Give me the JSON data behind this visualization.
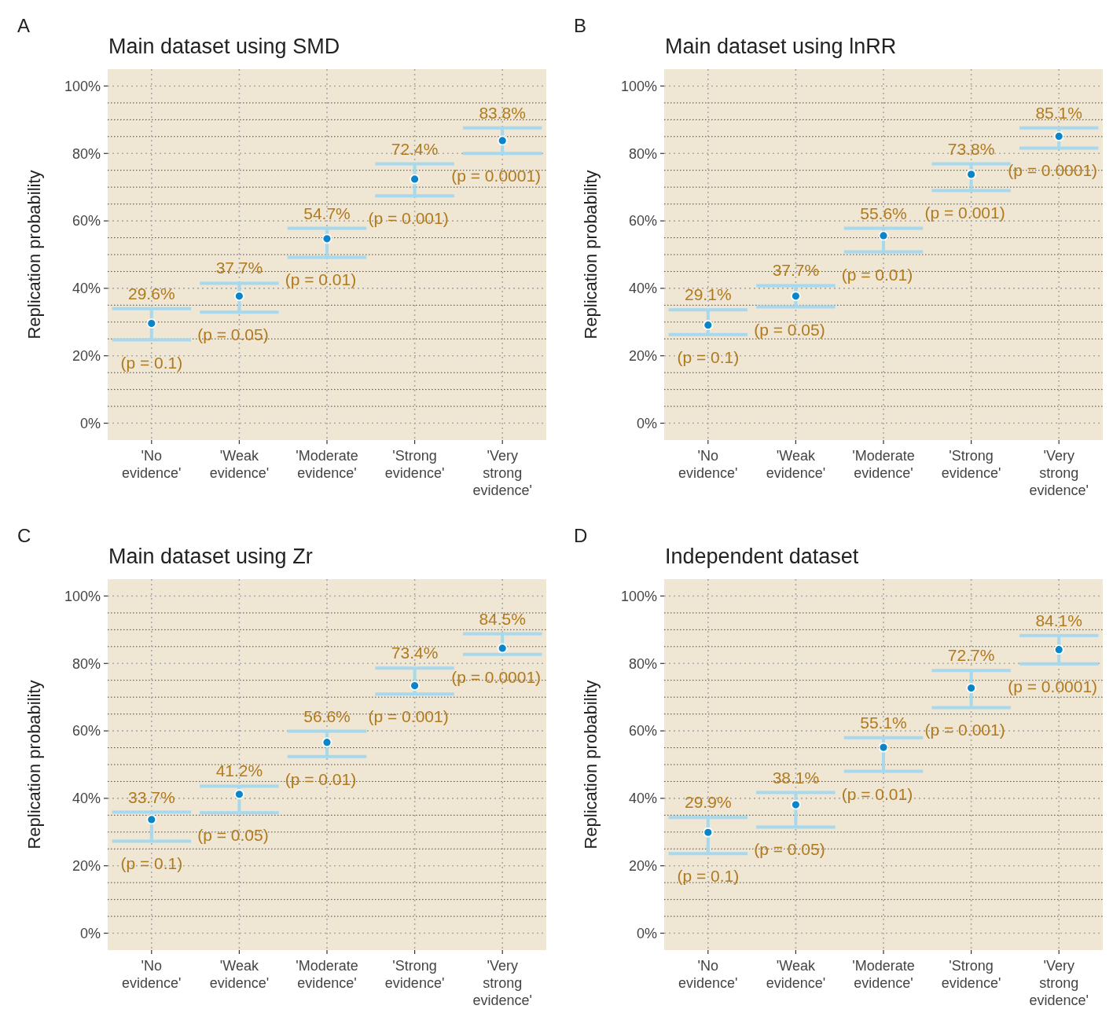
{
  "chart_data": [
    {
      "type": "scatter",
      "title": "Main dataset using SMD",
      "ylabel": "Replication probability",
      "categories": [
        "'No evidence'",
        "'Weak evidence'",
        "'Moderate evidence'",
        "'Strong evidence'",
        "'Very strong evidence'"
      ],
      "series": [
        {
          "color": "#0a86c8",
          "values": [
            29.6,
            37.7,
            54.7,
            72.4,
            83.8
          ],
          "errors": [
            [
              24.7,
              34.0
            ],
            [
              32.9,
              41.5
            ],
            [
              49.2,
              57.8
            ],
            [
              67.4,
              76.9
            ],
            [
              80.0,
              87.6
            ]
          ],
          "value_labels": [
            "29.6%",
            "37.7%",
            "54.7%",
            "72.4%",
            "83.8%"
          ]
        }
      ],
      "annotations": [
        "A",
        "(p = 0.1)",
        "(p = 0.05)",
        "(p = 0.01)",
        "(p = 0.001)",
        "(p = 0.0001)"
      ],
      "ylim": [
        -5,
        105
      ],
      "yticks": [
        {
          "value": 0,
          "label": "0%"
        },
        {
          "value": 5,
          "label": null
        },
        {
          "value": 10,
          "label": null
        },
        {
          "value": 15,
          "label": null
        },
        {
          "value": 20,
          "label": "20%"
        },
        {
          "value": 25,
          "label": null
        },
        {
          "value": 30,
          "label": null
        },
        {
          "value": 35,
          "label": null
        },
        {
          "value": 40,
          "label": "40%"
        },
        {
          "value": 45,
          "label": null
        },
        {
          "value": 50,
          "label": null
        },
        {
          "value": 55,
          "label": null
        },
        {
          "value": 60,
          "label": "60%"
        },
        {
          "value": 65,
          "label": null
        },
        {
          "value": 70,
          "label": null
        },
        {
          "value": 75,
          "label": null
        },
        {
          "value": 80,
          "label": "80%"
        },
        {
          "value": 85,
          "label": null
        },
        {
          "value": 90,
          "label": null
        },
        {
          "value": 95,
          "label": null
        },
        {
          "value": 100,
          "label": "100%"
        }
      ],
      "grid": true,
      "marker": "circle"
    },
    {
      "type": "scatter",
      "title": "Main dataset using lnRR",
      "ylabel": "Replication probability",
      "categories": [
        "'No evidence'",
        "'Weak evidence'",
        "'Moderate evidence'",
        "'Strong evidence'",
        "'Very strong evidence'"
      ],
      "series": [
        {
          "color": "#0a86c8",
          "values": [
            29.1,
            37.7,
            55.6,
            73.8,
            85.1
          ],
          "errors": [
            [
              26.3,
              33.6
            ],
            [
              34.5,
              40.8
            ],
            [
              50.8,
              57.8
            ],
            [
              69.0,
              76.9
            ],
            [
              81.6,
              87.6
            ]
          ],
          "value_labels": [
            "29.1%",
            "37.7%",
            "55.6%",
            "73.8%",
            "85.1%"
          ]
        }
      ],
      "annotations": [
        "B",
        "(p = 0.1)",
        "(p = 0.05)",
        "(p = 0.01)",
        "(p = 0.001)",
        "(p = 0.0001)"
      ],
      "ylim": [
        -5,
        105
      ],
      "yticks": [
        {
          "value": 0,
          "label": "0%"
        },
        {
          "value": 5,
          "label": null
        },
        {
          "value": 10,
          "label": null
        },
        {
          "value": 15,
          "label": null
        },
        {
          "value": 20,
          "label": "20%"
        },
        {
          "value": 25,
          "label": null
        },
        {
          "value": 30,
          "label": null
        },
        {
          "value": 35,
          "label": null
        },
        {
          "value": 40,
          "label": "40%"
        },
        {
          "value": 45,
          "label": null
        },
        {
          "value": 50,
          "label": null
        },
        {
          "value": 55,
          "label": null
        },
        {
          "value": 60,
          "label": "60%"
        },
        {
          "value": 65,
          "label": null
        },
        {
          "value": 70,
          "label": null
        },
        {
          "value": 75,
          "label": null
        },
        {
          "value": 80,
          "label": "80%"
        },
        {
          "value": 85,
          "label": null
        },
        {
          "value": 90,
          "label": null
        },
        {
          "value": 95,
          "label": null
        },
        {
          "value": 100,
          "label": "100%"
        }
      ],
      "grid": true,
      "marker": "circle"
    },
    {
      "type": "scatter",
      "title": "Main dataset using Zr",
      "ylabel": "Replication probability",
      "categories": [
        "'No evidence'",
        "'Weak evidence'",
        "'Moderate evidence'",
        "'Strong evidence'",
        "'Very strong evidence'"
      ],
      "series": [
        {
          "color": "#0a86c8",
          "values": [
            33.7,
            41.2,
            56.6,
            73.4,
            84.5
          ],
          "errors": [
            [
              27.3,
              35.9
            ],
            [
              35.7,
              43.6
            ],
            [
              52.4,
              59.9
            ],
            [
              70.9,
              78.6
            ],
            [
              82.7,
              88.8
            ]
          ],
          "value_labels": [
            "33.7%",
            "41.2%",
            "56.6%",
            "73.4%",
            "84.5%"
          ]
        }
      ],
      "annotations": [
        "C",
        "(p = 0.1)",
        "(p = 0.05)",
        "(p = 0.01)",
        "(p = 0.001)",
        "(p = 0.0001)"
      ],
      "ylim": [
        -5,
        105
      ],
      "yticks": [
        {
          "value": 0,
          "label": "0%"
        },
        {
          "value": 5,
          "label": null
        },
        {
          "value": 10,
          "label": null
        },
        {
          "value": 15,
          "label": null
        },
        {
          "value": 20,
          "label": "20%"
        },
        {
          "value": 25,
          "label": null
        },
        {
          "value": 30,
          "label": null
        },
        {
          "value": 35,
          "label": null
        },
        {
          "value": 40,
          "label": "40%"
        },
        {
          "value": 45,
          "label": null
        },
        {
          "value": 50,
          "label": null
        },
        {
          "value": 55,
          "label": null
        },
        {
          "value": 60,
          "label": "60%"
        },
        {
          "value": 65,
          "label": null
        },
        {
          "value": 70,
          "label": null
        },
        {
          "value": 75,
          "label": null
        },
        {
          "value": 80,
          "label": "80%"
        },
        {
          "value": 85,
          "label": null
        },
        {
          "value": 90,
          "label": null
        },
        {
          "value": 95,
          "label": null
        },
        {
          "value": 100,
          "label": "100%"
        }
      ],
      "grid": true,
      "marker": "circle"
    },
    {
      "type": "scatter",
      "title": "Independent dataset",
      "ylabel": "Replication probability",
      "categories": [
        "'No evidence'",
        "'Weak evidence'",
        "'Moderate evidence'",
        "'Strong evidence'",
        "'Very strong evidence'"
      ],
      "series": [
        {
          "color": "#0a86c8",
          "values": [
            29.9,
            38.1,
            55.1,
            72.7,
            84.1
          ],
          "errors": [
            [
              23.6,
              34.3
            ],
            [
              31.5,
              41.7
            ],
            [
              48.0,
              58.0
            ],
            [
              66.9,
              77.9
            ],
            [
              79.9,
              88.3
            ]
          ],
          "value_labels": [
            "29.9%",
            "38.1%",
            "55.1%",
            "72.7%",
            "84.1%"
          ]
        }
      ],
      "annotations": [
        "D",
        "(p = 0.1)",
        "(p = 0.05)",
        "(p = 0.01)",
        "(p = 0.001)",
        "(p = 0.0001)"
      ],
      "ylim": [
        -5,
        105
      ],
      "yticks": [
        {
          "value": 0,
          "label": "0%"
        },
        {
          "value": 5,
          "label": null
        },
        {
          "value": 10,
          "label": null
        },
        {
          "value": 15,
          "label": null
        },
        {
          "value": 20,
          "label": "20%"
        },
        {
          "value": 25,
          "label": null
        },
        {
          "value": 30,
          "label": null
        },
        {
          "value": 35,
          "label": null
        },
        {
          "value": 40,
          "label": "40%"
        },
        {
          "value": 45,
          "label": null
        },
        {
          "value": 50,
          "label": null
        },
        {
          "value": 55,
          "label": null
        },
        {
          "value": 60,
          "label": "60%"
        },
        {
          "value": 65,
          "label": null
        },
        {
          "value": 70,
          "label": null
        },
        {
          "value": 75,
          "label": null
        },
        {
          "value": 80,
          "label": "80%"
        },
        {
          "value": 85,
          "label": null
        },
        {
          "value": 90,
          "label": null
        },
        {
          "value": 95,
          "label": null
        },
        {
          "value": 100,
          "label": "100%"
        }
      ],
      "grid": true,
      "marker": "circle"
    }
  ]
}
